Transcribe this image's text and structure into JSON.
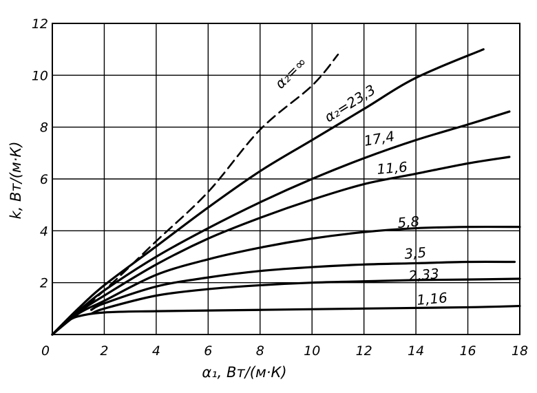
{
  "chart_data": {
    "type": "line",
    "xlabel": "α₁, Вт/(м·К)",
    "ylabel": "k, Вт/(м·К)",
    "xlim": [
      0,
      18
    ],
    "ylim": [
      0,
      12
    ],
    "x_ticks": [
      "0",
      "2",
      "4",
      "6",
      "8",
      "10",
      "12",
      "14",
      "16",
      "18"
    ],
    "y_ticks": [
      "2",
      "4",
      "6",
      "8",
      "10",
      "12"
    ],
    "grid": true,
    "legend": "none",
    "series": [
      {
        "name": "α₂=∞",
        "dashed": true,
        "points": [
          [
            0,
            0
          ],
          [
            2,
            1.7
          ],
          [
            4,
            3.6
          ],
          [
            6,
            5.5
          ],
          [
            8,
            7.9
          ],
          [
            10,
            9.6
          ],
          [
            11,
            10.8
          ]
        ]
      },
      {
        "name": "α₂=23,3",
        "points": [
          [
            0,
            0
          ],
          [
            1,
            1.0
          ],
          [
            2,
            1.9
          ],
          [
            4,
            3.4
          ],
          [
            6,
            4.9
          ],
          [
            8,
            6.3
          ],
          [
            10,
            7.5
          ],
          [
            12,
            8.7
          ],
          [
            14,
            9.9
          ],
          [
            16.6,
            11.0
          ]
        ]
      },
      {
        "name": "17,4",
        "points": [
          [
            0,
            0
          ],
          [
            1,
            0.9
          ],
          [
            2,
            1.7
          ],
          [
            4,
            3.0
          ],
          [
            6,
            4.1
          ],
          [
            8,
            5.1
          ],
          [
            10,
            6.0
          ],
          [
            12,
            6.8
          ],
          [
            14,
            7.5
          ],
          [
            16,
            8.1
          ],
          [
            17.6,
            8.6
          ]
        ]
      },
      {
        "name": "11,6",
        "points": [
          [
            0,
            0
          ],
          [
            1,
            0.85
          ],
          [
            2,
            1.5
          ],
          [
            4,
            2.7
          ],
          [
            6,
            3.7
          ],
          [
            8,
            4.5
          ],
          [
            10,
            5.2
          ],
          [
            12,
            5.8
          ],
          [
            14,
            6.2
          ],
          [
            16,
            6.6
          ],
          [
            17.6,
            6.85
          ]
        ]
      },
      {
        "name": "5,8",
        "points": [
          [
            0,
            0
          ],
          [
            1,
            0.8
          ],
          [
            2,
            1.3
          ],
          [
            4,
            2.3
          ],
          [
            6,
            2.9
          ],
          [
            8,
            3.35
          ],
          [
            10,
            3.7
          ],
          [
            12,
            3.95
          ],
          [
            14,
            4.1
          ],
          [
            16,
            4.15
          ],
          [
            18,
            4.15
          ]
        ]
      },
      {
        "name": "3,5",
        "points": [
          [
            1.5,
            0.95
          ],
          [
            2,
            1.2
          ],
          [
            4,
            1.85
          ],
          [
            6,
            2.2
          ],
          [
            8,
            2.45
          ],
          [
            10,
            2.6
          ],
          [
            12,
            2.7
          ],
          [
            14,
            2.75
          ],
          [
            16,
            2.8
          ],
          [
            17.8,
            2.8
          ]
        ]
      },
      {
        "name": "2,33",
        "points": [
          [
            1.5,
            0.8
          ],
          [
            2,
            1.0
          ],
          [
            4,
            1.5
          ],
          [
            6,
            1.75
          ],
          [
            8,
            1.9
          ],
          [
            10,
            2.0
          ],
          [
            12,
            2.05
          ],
          [
            14,
            2.1
          ],
          [
            16,
            2.12
          ],
          [
            18,
            2.15
          ]
        ]
      },
      {
        "name": "1,16",
        "points": [
          [
            0,
            0
          ],
          [
            0.5,
            0.45
          ],
          [
            1,
            0.7
          ],
          [
            2,
            0.85
          ],
          [
            4,
            0.9
          ],
          [
            8,
            0.95
          ],
          [
            12,
            1.0
          ],
          [
            16,
            1.05
          ],
          [
            18,
            1.1
          ]
        ]
      }
    ]
  }
}
